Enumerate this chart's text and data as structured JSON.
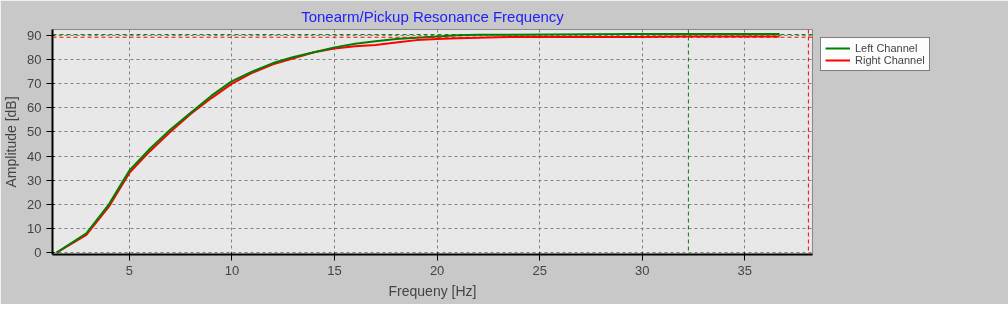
{
  "chart_data": {
    "type": "line",
    "title": "Tonearm/Pickup Resonance Frequency",
    "xlabel": "Frequeny [Hz]",
    "ylabel": "Amplitude [dB]",
    "x": [
      1.45,
      2.9,
      4.0,
      4.5,
      5.0,
      6.0,
      7.0,
      8.0,
      9.0,
      10.0,
      11.0,
      12.0,
      13.0,
      14.0,
      15.0,
      16.0,
      17.0,
      18.0,
      19.0,
      20.0,
      21.0,
      22.0,
      23.5,
      29.5,
      32.2,
      36.7
    ],
    "series": [
      {
        "name": "Left Channel",
        "color": "#008000",
        "values": [
          0,
          8,
          20,
          27,
          34,
          43,
          51,
          58,
          65,
          71,
          75,
          78.5,
          81,
          83,
          85,
          86.5,
          87.5,
          88.5,
          89,
          89.5,
          90,
          90.2,
          90.2,
          90.5,
          90.5,
          90.5
        ]
      },
      {
        "name": "Right Channel",
        "color": "#ff0000",
        "values": [
          0,
          7.3,
          19,
          26,
          33,
          42,
          50,
          57.5,
          64,
          70,
          74.5,
          78,
          80.5,
          83,
          84.5,
          85.5,
          86,
          87,
          88,
          88.5,
          88.8,
          89,
          89.3,
          89.3,
          89.5,
          89.5
        ]
      }
    ],
    "xlim": [
      1.25,
      38.3
    ],
    "ylim": [
      -0.8,
      92.4
    ],
    "xticks": [
      5,
      10,
      15,
      20,
      25,
      30,
      35
    ],
    "yticks": [
      0,
      10,
      20,
      30,
      40,
      50,
      60,
      70,
      80,
      90
    ],
    "ref_lines": [
      {
        "axis": "y",
        "value": 90.3,
        "color": "#008000",
        "line_style": "dashed"
      },
      {
        "axis": "y",
        "value": 89.2,
        "color": "#ff0000",
        "line_style": "dashed"
      },
      {
        "axis": "x",
        "value": 32.25,
        "color": "#008000",
        "line_style": "dashed"
      },
      {
        "axis": "x",
        "value": 38.1,
        "color": "#ff0000",
        "line_style": "dashed"
      }
    ],
    "grid": true,
    "legend": "top right",
    "line_style": "solid",
    "marker": "none"
  }
}
